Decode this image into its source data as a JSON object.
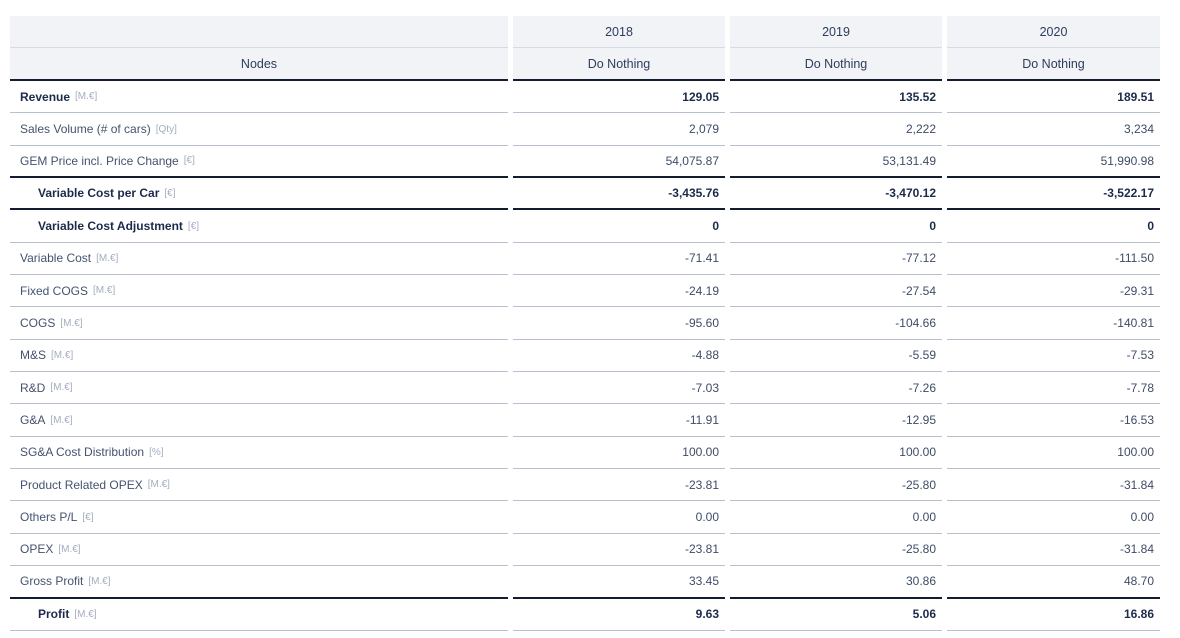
{
  "colors": {
    "header_background": "#f1f3f7",
    "dark_divider": "#141d30",
    "light_divider": "#b8bfce",
    "label_text": "#44536e",
    "bold_text": "#1c2b49",
    "unit_text": "#a4adc0"
  },
  "table": {
    "nodes_header": "Nodes",
    "columns": [
      {
        "year": "2018",
        "scenario": "Do Nothing"
      },
      {
        "year": "2019",
        "scenario": "Do Nothing"
      },
      {
        "year": "2020",
        "scenario": "Do Nothing"
      }
    ],
    "rows": [
      {
        "label": "Revenue",
        "unit": "[M.€]",
        "values": [
          "129.05",
          "135.52",
          "189.51"
        ],
        "bold": true,
        "indent": false,
        "divider": "light"
      },
      {
        "label": "Sales Volume (# of cars)",
        "unit": "[Qty]",
        "values": [
          "2,079",
          "2,222",
          "3,234"
        ],
        "bold": false,
        "indent": false,
        "divider": "light"
      },
      {
        "label": "GEM Price incl. Price Change",
        "unit": "[€]",
        "values": [
          "54,075.87",
          "53,131.49",
          "51,990.98"
        ],
        "bold": false,
        "indent": false,
        "divider": "dark"
      },
      {
        "label": "Variable Cost per Car",
        "unit": "[€]",
        "values": [
          "-3,435.76",
          "-3,470.12",
          "-3,522.17"
        ],
        "bold": true,
        "indent": true,
        "divider": "dark"
      },
      {
        "label": "Variable Cost Adjustment",
        "unit": "[€]",
        "values": [
          "0",
          "0",
          "0"
        ],
        "bold": true,
        "indent": true,
        "divider": "light"
      },
      {
        "label": "Variable Cost",
        "unit": "[M.€]",
        "values": [
          "-71.41",
          "-77.12",
          "-111.50"
        ],
        "bold": false,
        "indent": false,
        "divider": "light"
      },
      {
        "label": "Fixed COGS",
        "unit": "[M.€]",
        "values": [
          "-24.19",
          "-27.54",
          "-29.31"
        ],
        "bold": false,
        "indent": false,
        "divider": "light"
      },
      {
        "label": "COGS",
        "unit": "[M.€]",
        "values": [
          "-95.60",
          "-104.66",
          "-140.81"
        ],
        "bold": false,
        "indent": false,
        "divider": "light"
      },
      {
        "label": "M&S",
        "unit": "[M.€]",
        "values": [
          "-4.88",
          "-5.59",
          "-7.53"
        ],
        "bold": false,
        "indent": false,
        "divider": "light"
      },
      {
        "label": "R&D",
        "unit": "[M.€]",
        "values": [
          "-7.03",
          "-7.26",
          "-7.78"
        ],
        "bold": false,
        "indent": false,
        "divider": "light"
      },
      {
        "label": "G&A",
        "unit": "[M.€]",
        "values": [
          "-11.91",
          "-12.95",
          "-16.53"
        ],
        "bold": false,
        "indent": false,
        "divider": "light"
      },
      {
        "label": "SG&A Cost Distribution",
        "unit": "[%]",
        "values": [
          "100.00",
          "100.00",
          "100.00"
        ],
        "bold": false,
        "indent": false,
        "divider": "light"
      },
      {
        "label": "Product Related OPEX",
        "unit": "[M.€]",
        "values": [
          "-23.81",
          "-25.80",
          "-31.84"
        ],
        "bold": false,
        "indent": false,
        "divider": "light"
      },
      {
        "label": "Others P/L",
        "unit": "[€]",
        "values": [
          "0.00",
          "0.00",
          "0.00"
        ],
        "bold": false,
        "indent": false,
        "divider": "light"
      },
      {
        "label": "OPEX",
        "unit": "[M.€]",
        "values": [
          "-23.81",
          "-25.80",
          "-31.84"
        ],
        "bold": false,
        "indent": false,
        "divider": "light"
      },
      {
        "label": "Gross Profit",
        "unit": "[M.€]",
        "values": [
          "33.45",
          "30.86",
          "48.70"
        ],
        "bold": false,
        "indent": false,
        "divider": "dark"
      },
      {
        "label": "Profit",
        "unit": "[M.€]",
        "values": [
          "9.63",
          "5.06",
          "16.86"
        ],
        "bold": true,
        "indent": true,
        "divider": "light"
      }
    ]
  }
}
